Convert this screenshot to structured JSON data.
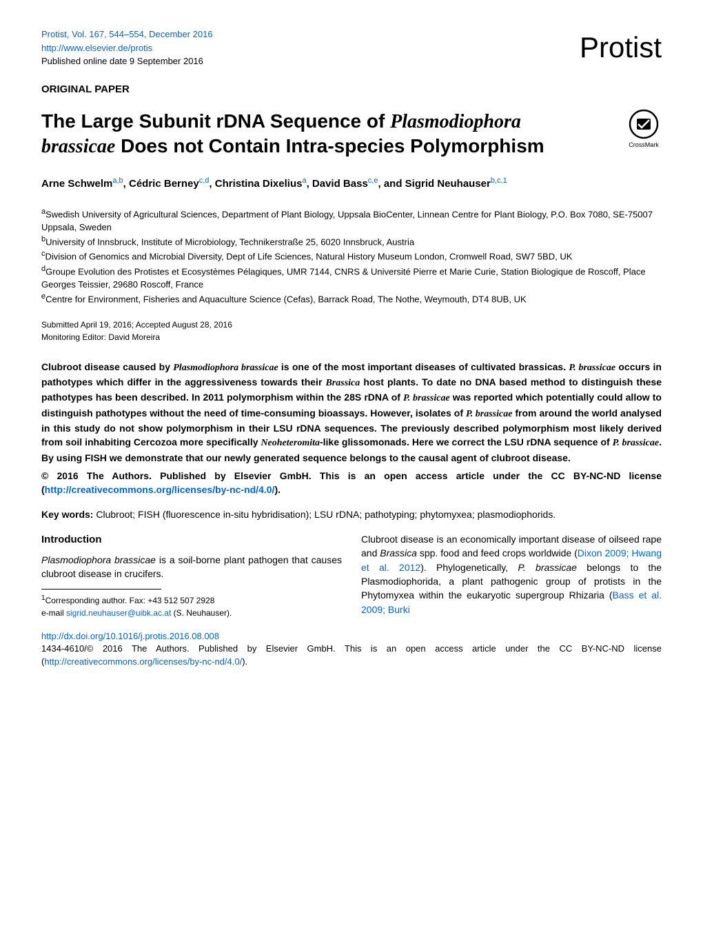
{
  "header": {
    "citation": "Protist, Vol. 167, 544–554, December 2016",
    "url": "http://www.elsevier.de/protis",
    "pubdate": "Published online date 9 September 2016",
    "journal": "Protist"
  },
  "paper_type": "ORIGINAL PAPER",
  "title_parts": {
    "p1": "The Large Subunit rDNA Sequence of ",
    "species": "Plasmodiophora brassicae",
    "p2": " Does not Contain Intra-species Polymorphism"
  },
  "crossmark_label": "CrossMark",
  "authors_html": "Arne Schwelm<sup>a,b</sup>, Cédric Berney<sup>c,d</sup>, Christina Dixelius<sup>a</sup>, David Bass<sup>c,e</sup>, and Sigrid Neuhauser<sup>b,c,1</sup>",
  "affiliations": [
    {
      "sup": "a",
      "text": "Swedish University of Agricultural Sciences, Department of Plant Biology, Uppsala BioCenter, Linnean Centre for Plant Biology, P.O. Box 7080, SE-75007 Uppsala, Sweden"
    },
    {
      "sup": "b",
      "text": "University of Innsbruck, Institute of Microbiology, Technikerstraße 25, 6020 Innsbruck, Austria"
    },
    {
      "sup": "c",
      "text": "Division of Genomics and Microbial Diversity, Dept of Life Sciences, Natural History Museum London, Cromwell Road, SW7 5BD, UK"
    },
    {
      "sup": "d",
      "text": "Groupe Evolution des Protistes et Ecosystèmes Pélagiques, UMR 7144, CNRS & Université Pierre et Marie Curie, Station Biologique de Roscoff, Place Georges Teissier, 29680 Roscoff, France"
    },
    {
      "sup": "e",
      "text": "Centre for Environment, Fisheries and Aquaculture Science (Cefas), Barrack Road, The Nothe, Weymouth, DT4 8UB, UK"
    }
  ],
  "dates": {
    "submitted": "Submitted April 19, 2016; Accepted August 28, 2016",
    "editor": "Monitoring Editor: David Moreira"
  },
  "abstract_parts": {
    "p1": "Clubroot disease caused by ",
    "i1": "Plasmodiophora brassicae",
    "p2": " is one of the most important diseases of cultivated brassicas. ",
    "i2": "P. brassicae",
    "p3": " occurs in pathotypes which differ in the aggressiveness towards their ",
    "i3": "Brassica",
    "p4": " host plants. To date no DNA based method to distinguish these pathotypes has been described. In 2011 polymorphism within the 28S rDNA of ",
    "i4": "P. brassicae",
    "p5": " was reported which potentially could allow to distinguish pathotypes without the need of time-consuming bioassays. However, isolates of ",
    "i5": "P. brassicae",
    "p6": " from around the world analysed in this study do not show polymorphism in their LSU rDNA sequences. The previously described polymorphism most likely derived from soil inhabiting Cercozoa more specifically ",
    "i6": "Neoheteromita",
    "p7": "-like glissomonads. Here we correct the LSU rDNA sequence of ",
    "i7": "P. brassicae",
    "p8": ". By using FISH we demonstrate that our newly generated sequence belongs to the causal agent of clubroot disease."
  },
  "license": {
    "text": "© 2016 The Authors. Published by Elsevier GmbH. This is an open access article under the CC BY-NC-ND license (",
    "url": "http://creativecommons.org/licenses/by-nc-nd/4.0/",
    "close": ")."
  },
  "keywords": {
    "label": "Key words: ",
    "text": "Clubroot; FISH (fluorescence in-situ hybridisation); LSU rDNA; pathotyping; phytomyxea; plasmodiophorids."
  },
  "left_col": {
    "heading": "Introduction",
    "p1a": "Plasmodiophora brassicae",
    "p1b": " is a soil-borne plant pathogen that causes clubroot disease in crucifers."
  },
  "corresponding": {
    "sup": "1",
    "line1": "Corresponding author. Fax: +43 512 507 2928",
    "line2a": "e-mail ",
    "email": "sigrid.neuhauser@uibk.ac.at",
    "line2b": " (S. Neuhauser)."
  },
  "right_col": {
    "p1": "Clubroot disease is an economically important disease of oilseed rape and ",
    "i1": "Brassica",
    "p2": " spp. food and feed crops worldwide (",
    "ref1": "Dixon 2009; Hwang et al. 2012",
    "p3": "). Phylogenetically, ",
    "i2": "P. brassicae",
    "p4": " belongs to the Plasmodiophorida, a plant pathogenic group of protists in the Phytomyxea within the eukaryotic supergroup Rhizaria (",
    "ref2": "Bass et al. 2009; Burki"
  },
  "footer": {
    "doi": "http://dx.doi.org/10.1016/j.protis.2016.08.008",
    "copyright_a": "1434-4610/© 2016 The Authors. Published by Elsevier GmbH. This is an open access article under the CC BY-NC-ND license (",
    "copyright_url": "http://creativecommons.org/licenses/by-nc-nd/4.0/",
    "copyright_b": ")."
  },
  "colors": {
    "link": "#0066cc",
    "text": "#000000",
    "bg": "#ffffff"
  }
}
